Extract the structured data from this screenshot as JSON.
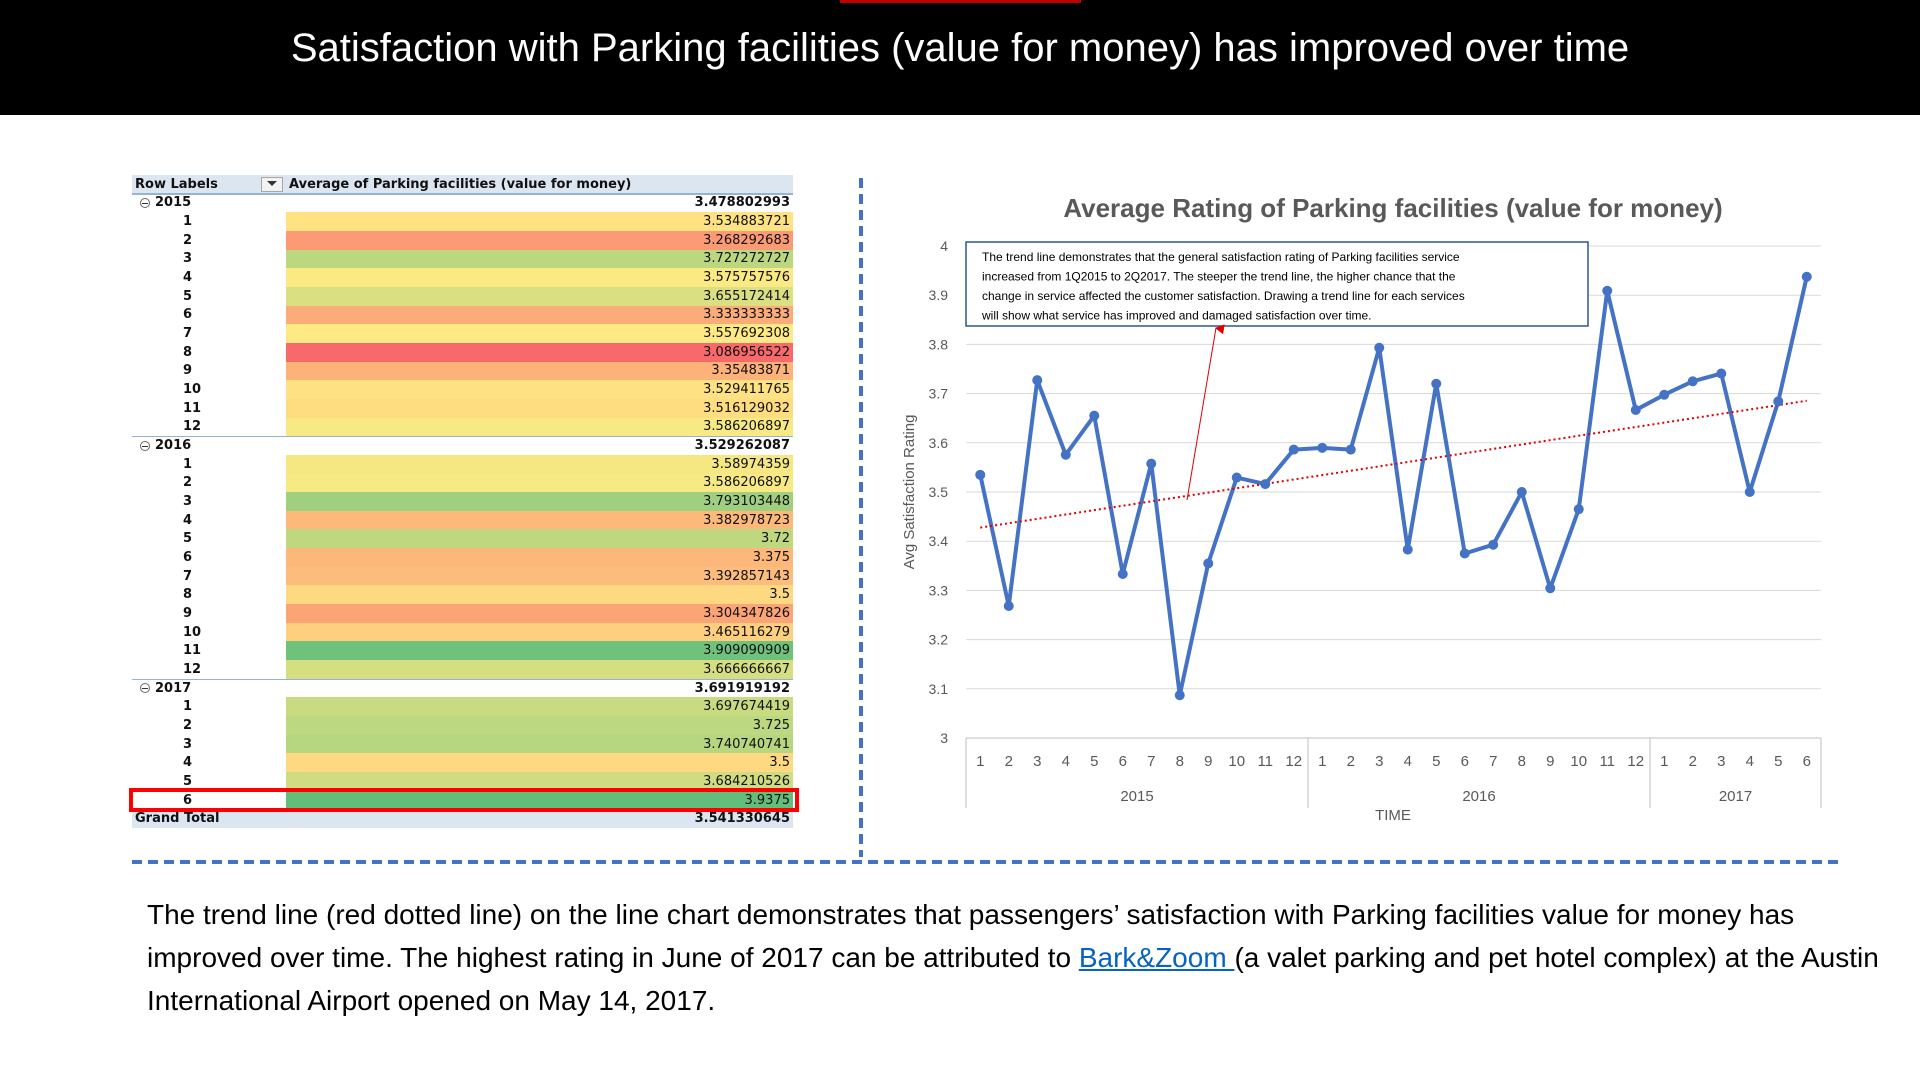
{
  "header": {
    "title": "Satisfaction with Parking facilities (value for money) has improved over time"
  },
  "table": {
    "columns": [
      "Row Labels",
      "Average of Parking facilities (value for money)"
    ],
    "color_scale": [
      "#f8696b",
      "#ffeb84",
      "#63be7b"
    ],
    "groups": [
      {
        "label": "2015",
        "value": 3.478802993,
        "rows": [
          {
            "label": "1",
            "value": 3.534883721
          },
          {
            "label": "2",
            "value": 3.268292683
          },
          {
            "label": "3",
            "value": 3.727272727
          },
          {
            "label": "4",
            "value": 3.575757576
          },
          {
            "label": "5",
            "value": 3.655172414
          },
          {
            "label": "6",
            "value": 3.333333333
          },
          {
            "label": "7",
            "value": 3.557692308
          },
          {
            "label": "8",
            "value": 3.086956522
          },
          {
            "label": "9",
            "value": 3.35483871
          },
          {
            "label": "10",
            "value": 3.529411765
          },
          {
            "label": "11",
            "value": 3.516129032
          },
          {
            "label": "12",
            "value": 3.586206897
          }
        ]
      },
      {
        "label": "2016",
        "value": 3.529262087,
        "rows": [
          {
            "label": "1",
            "value": 3.58974359
          },
          {
            "label": "2",
            "value": 3.586206897
          },
          {
            "label": "3",
            "value": 3.793103448
          },
          {
            "label": "4",
            "value": 3.382978723
          },
          {
            "label": "5",
            "value": 3.72
          },
          {
            "label": "6",
            "value": 3.375
          },
          {
            "label": "7",
            "value": 3.392857143
          },
          {
            "label": "8",
            "value": 3.5
          },
          {
            "label": "9",
            "value": 3.304347826
          },
          {
            "label": "10",
            "value": 3.465116279
          },
          {
            "label": "11",
            "value": 3.909090909
          },
          {
            "label": "12",
            "value": 3.666666667
          }
        ]
      },
      {
        "label": "2017",
        "value": 3.691919192,
        "rows": [
          {
            "label": "1",
            "value": 3.697674419
          },
          {
            "label": "2",
            "value": 3.725
          },
          {
            "label": "3",
            "value": 3.740740741
          },
          {
            "label": "4",
            "value": 3.5
          },
          {
            "label": "5",
            "value": 3.684210526
          },
          {
            "label": "6",
            "value": 3.9375
          }
        ]
      }
    ],
    "total": {
      "label": "Grand Total",
      "value": 3.541330645
    }
  },
  "chart_data": {
    "type": "line",
    "title": "Average Rating of Parking facilities (value for money)",
    "x_label": "TIME",
    "y_label": "Avg Satisfaction Rating",
    "categories": [
      "1",
      "2",
      "3",
      "4",
      "5",
      "6",
      "7",
      "8",
      "9",
      "10",
      "11",
      "12",
      "1",
      "2",
      "3",
      "4",
      "5",
      "6",
      "7",
      "8",
      "9",
      "10",
      "11",
      "12",
      "1",
      "2",
      "3",
      "4",
      "5",
      "6"
    ],
    "groups": [
      "2015",
      "2016",
      "2017"
    ],
    "series": [
      {
        "color": "#4472c4",
        "values": [
          3.534883721,
          3.268292683,
          3.727272727,
          3.575757576,
          3.655172414,
          3.333333333,
          3.557692308,
          3.086956522,
          3.35483871,
          3.529411765,
          3.516129032,
          3.586206897,
          3.58974359,
          3.586206897,
          3.793103448,
          3.382978723,
          3.72,
          3.375,
          3.392857143,
          3.5,
          3.304347826,
          3.465116279,
          3.909090909,
          3.666666667,
          3.697674419,
          3.725,
          3.740740741,
          3.5,
          3.684210526,
          3.9375
        ]
      }
    ],
    "trendline": {
      "type": "linear",
      "color": "#e00000"
    },
    "ylim": [
      3,
      4
    ],
    "yticks": [
      3,
      3.1,
      3.2,
      3.3,
      3.4,
      3.5,
      3.6,
      3.7,
      3.8,
      3.9,
      4
    ],
    "grid": true,
    "annotation": {
      "lines": [
        "The trend line demonstrates that the general satisfaction rating of Parking facilities service",
        "increased from 1Q2015 to 2Q2017. The steeper the trend line, the higher chance that the",
        "change in service affected the customer satisfaction. Drawing a trend line for each services",
        "will show what service has improved and damaged satisfaction over time."
      ]
    }
  },
  "body": {
    "text": "The trend line (red dotted line) on the line chart demonstrates that passengers’ satisfaction with Parking facilities value for money has  improved over time. The highest rating in June of 2017 can be attributed to ",
    "link": "Bark&Zoom ",
    "text_after": "(a valet parking and pet hotel complex) at the Austin International Airport opened on May 14, 2017."
  }
}
